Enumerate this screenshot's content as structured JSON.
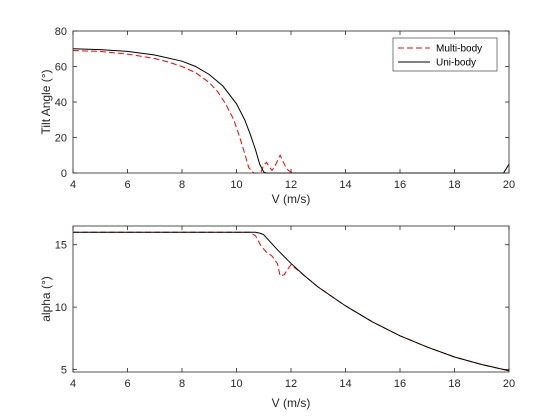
{
  "chart_data": [
    {
      "type": "line",
      "xlabel": "V (m/s)",
      "ylabel": "Tilt Angle (°)",
      "xlim": [
        4,
        20
      ],
      "ylim": [
        0,
        80
      ],
      "xticks": [
        4,
        6,
        8,
        10,
        12,
        14,
        16,
        18,
        20
      ],
      "yticks": [
        0,
        20,
        40,
        60,
        80
      ],
      "legend": {
        "position": "top-right",
        "entries": [
          "Multi-body",
          "Uni-body"
        ]
      },
      "series": [
        {
          "name": "Multi-body",
          "color": "#ff0000",
          "style": "dashed",
          "x": [
            4.0,
            5.0,
            6.0,
            7.0,
            7.5,
            8.0,
            8.5,
            9.0,
            9.3,
            9.6,
            9.9,
            10.1,
            10.3,
            10.45,
            10.6,
            10.65,
            10.7,
            10.8,
            10.9,
            11.0,
            11.1,
            11.2,
            11.3,
            11.4,
            11.6,
            11.8,
            11.9,
            12.0,
            12.2,
            14.0,
            16.0,
            18.0,
            20.0
          ],
          "y": [
            69.0,
            68.5,
            67.0,
            64.5,
            62.5,
            60.0,
            56.5,
            51.0,
            46.0,
            39.0,
            30.0,
            21.0,
            11.0,
            3.0,
            0.5,
            0.0,
            0.0,
            0.0,
            0.5,
            4.5,
            6.0,
            3.5,
            1.5,
            3.5,
            10.0,
            3.5,
            1.5,
            0.5,
            0.0,
            0.0,
            0.0,
            0.0,
            0.0
          ]
        },
        {
          "name": "Uni-body",
          "color": "#000000",
          "style": "solid",
          "x": [
            4.0,
            5.0,
            6.0,
            7.0,
            8.0,
            8.5,
            9.0,
            9.5,
            10.0,
            10.3,
            10.5,
            10.7,
            10.85,
            11.0,
            11.1,
            11.2,
            12.0,
            14.0,
            16.0,
            18.0,
            19.8,
            20.0
          ],
          "y": [
            70.0,
            69.5,
            68.5,
            66.5,
            63.0,
            60.0,
            55.5,
            49.0,
            39.0,
            30.0,
            22.0,
            13.0,
            5.0,
            0.5,
            0.0,
            0.0,
            0.0,
            0.0,
            0.0,
            0.0,
            0.0,
            5.0
          ]
        }
      ]
    },
    {
      "type": "line",
      "xlabel": "V (m/s)",
      "ylabel": "alpha (°)",
      "xlim": [
        4,
        20
      ],
      "ylim": [
        4.8,
        16.5
      ],
      "xticks": [
        4,
        6,
        8,
        10,
        12,
        14,
        16,
        18,
        20
      ],
      "yticks": [
        5,
        10,
        15
      ],
      "series": [
        {
          "name": "Multi-body",
          "color": "#ff0000",
          "style": "dashed",
          "x": [
            4.0,
            6.0,
            8.0,
            10.0,
            10.5,
            10.7,
            10.9,
            11.1,
            11.3,
            11.5,
            11.6,
            11.75,
            11.9,
            12.0,
            13.0,
            14.0,
            15.0,
            16.0,
            17.0,
            18.0,
            19.0,
            20.0
          ],
          "y": [
            16.0,
            16.0,
            16.0,
            16.0,
            16.0,
            15.7,
            14.9,
            14.4,
            14.1,
            13.5,
            12.5,
            12.6,
            13.1,
            13.4,
            11.6,
            10.1,
            8.8,
            7.7,
            6.8,
            6.0,
            5.4,
            4.9
          ]
        },
        {
          "name": "Uni-body",
          "color": "#000000",
          "style": "solid",
          "x": [
            4.0,
            6.0,
            8.0,
            10.0,
            10.5,
            10.7,
            10.9,
            11.0,
            11.5,
            12.0,
            12.5,
            13.0,
            14.0,
            15.0,
            16.0,
            17.0,
            18.0,
            19.0,
            20.0
          ],
          "y": [
            16.0,
            16.0,
            16.0,
            16.0,
            16.0,
            16.0,
            15.9,
            15.8,
            14.6,
            13.5,
            12.5,
            11.6,
            10.1,
            8.8,
            7.7,
            6.8,
            6.0,
            5.4,
            4.9
          ]
        }
      ]
    }
  ]
}
